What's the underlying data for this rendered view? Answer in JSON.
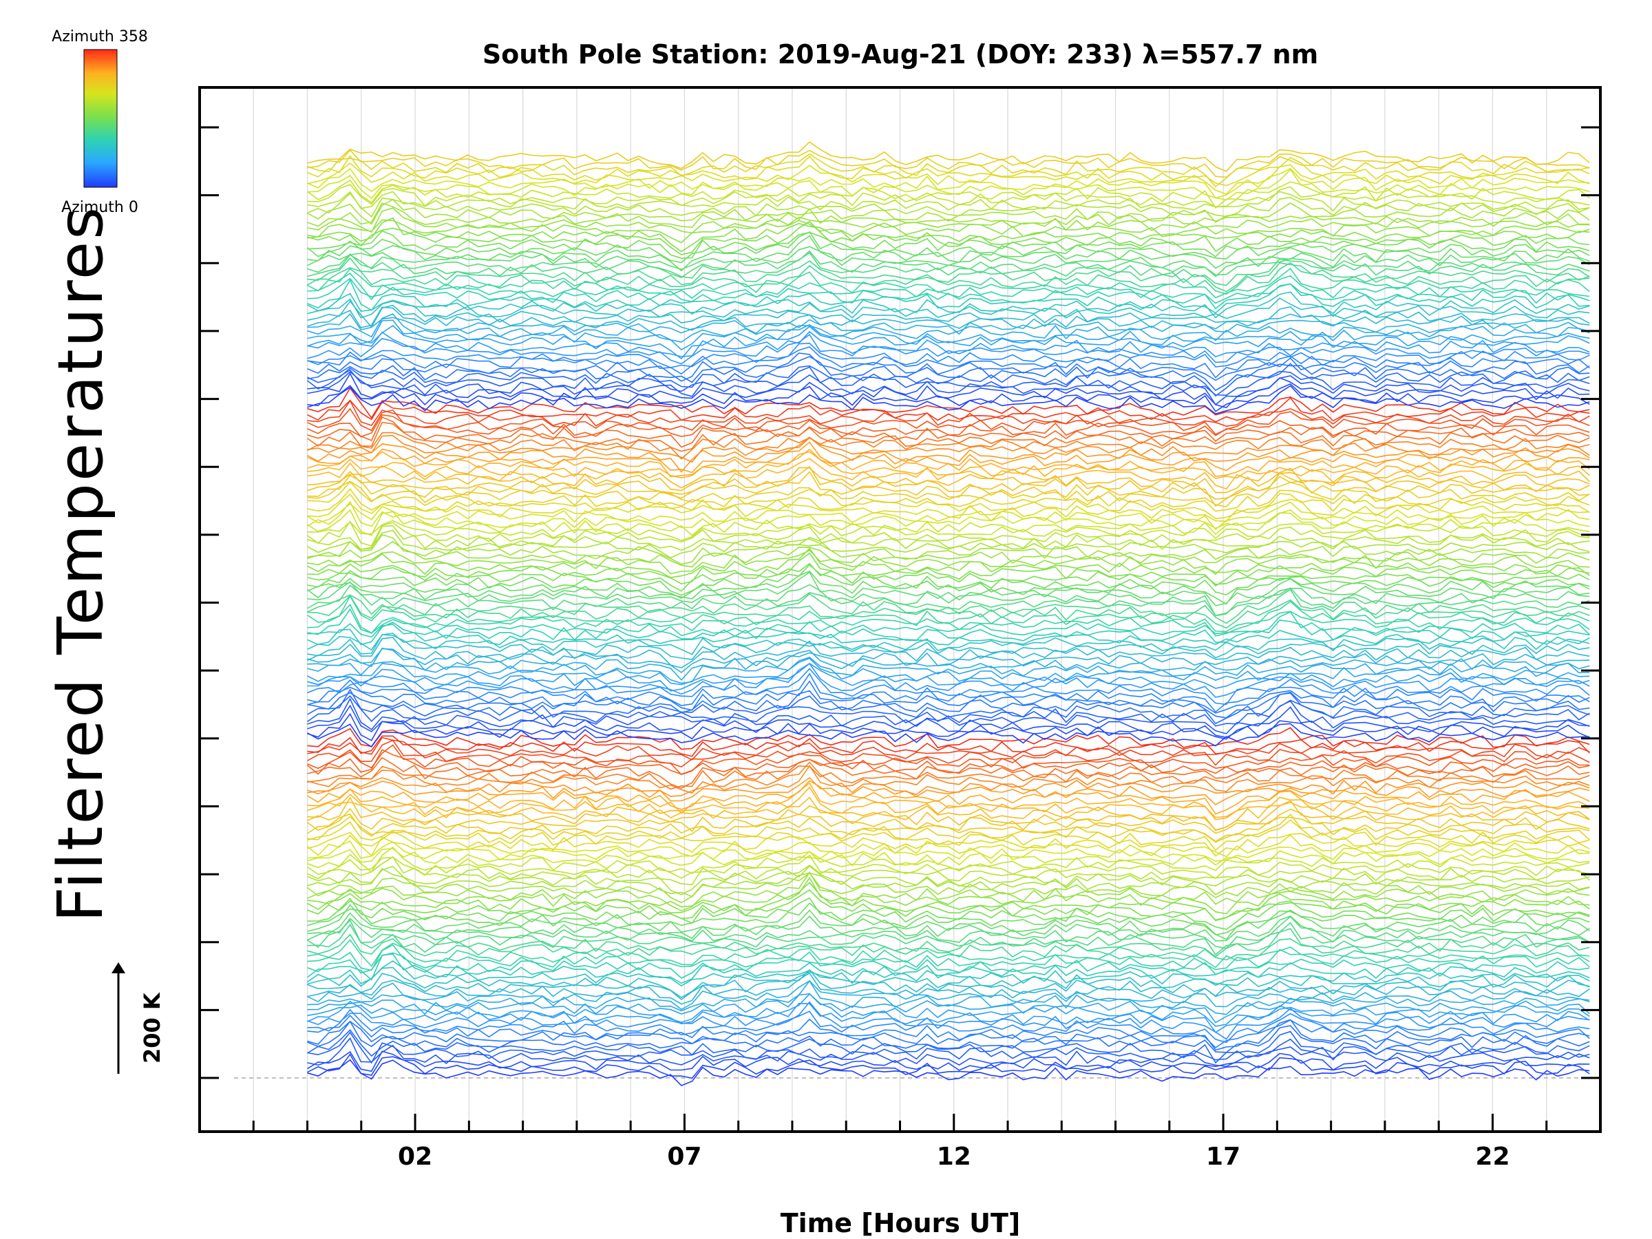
{
  "colorbar": {
    "top_label": "Azimuth 358",
    "bottom_label": "Azimuth 0",
    "colors": [
      "#1f3cff",
      "#2aa8ff",
      "#2fd3b0",
      "#7ee04a",
      "#d6e51f",
      "#ffb020",
      "#ff3a1a",
      "#e8221a"
    ]
  },
  "scale": {
    "label": "200 K"
  },
  "chart_data": {
    "type": "line",
    "title": "South Pole Station: 2019-Aug-21 (DOY: 233) λ=557.7 nm",
    "xlabel": "Time [Hours UT]",
    "ylabel": "Filtered Temperatures",
    "xlim": [
      -2,
      24
    ],
    "x_tick_labels": [
      "02",
      "07",
      "12",
      "17",
      "22"
    ],
    "x_tick_values": [
      2,
      7,
      12,
      17,
      22
    ],
    "x_minor_ticks": [
      -1,
      0,
      1,
      2,
      3,
      4,
      5,
      6,
      7,
      8,
      9,
      10,
      11,
      12,
      13,
      14,
      15,
      16,
      17,
      18,
      19,
      20,
      21,
      22,
      23
    ],
    "x_range_data": [
      0,
      23.8
    ],
    "y_major_ticks": 15,
    "n_traces": 180,
    "azimuth_range": [
      0,
      358
    ],
    "stacked_offsets": true,
    "grid": "vertical",
    "disturbance_times": [
      0.8,
      1.1,
      1.5,
      6.9,
      9.3,
      17.0,
      18.2
    ]
  }
}
